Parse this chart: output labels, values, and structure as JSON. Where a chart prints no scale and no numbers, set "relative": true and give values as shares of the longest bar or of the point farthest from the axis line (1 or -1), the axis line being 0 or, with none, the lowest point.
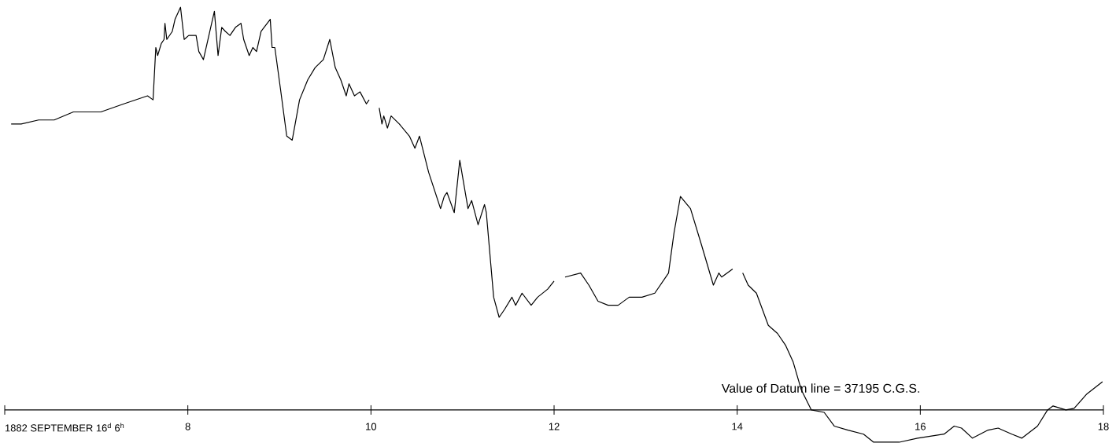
{
  "chart_data": {
    "type": "line",
    "relative": true,
    "x": [
      6.07,
      6.18,
      6.37,
      6.54,
      6.75,
      7.05,
      7.3,
      7.56,
      7.62,
      7.65,
      7.67,
      7.71,
      7.74,
      7.75,
      7.77,
      7.83,
      7.86,
      7.92,
      7.96,
      8.01,
      8.09,
      8.12,
      8.17,
      8.24,
      8.29,
      8.33,
      8.37,
      8.41,
      8.46,
      8.52,
      8.58,
      8.61,
      8.67,
      8.71,
      8.75,
      8.8,
      8.9,
      8.92,
      8.95,
      9.01,
      9.08,
      9.14,
      9.22,
      9.31,
      9.39,
      9.48,
      9.55,
      9.61,
      9.67,
      9.73,
      9.76,
      9.82,
      9.88,
      9.95,
      9.98,
      10.03,
      10.09,
      10.12,
      10.14,
      10.18,
      10.22,
      10.31,
      10.42,
      10.48,
      10.53,
      10.63,
      10.76,
      10.8,
      10.83,
      10.91,
      10.97,
      11.06,
      11.1,
      11.17,
      11.24,
      11.26,
      11.34,
      11.4,
      11.46,
      11.54,
      11.58,
      11.65,
      11.75,
      11.82,
      11.93,
      12.0,
      12.06,
      12.12,
      12.29,
      12.38,
      12.48,
      12.59,
      12.7,
      12.82,
      12.96,
      13.1,
      13.25,
      13.31,
      13.38,
      13.49,
      13.61,
      13.74,
      13.8,
      13.83,
      13.95,
      14.0,
      14.06,
      14.12,
      14.21,
      14.34,
      14.44,
      14.53,
      14.61,
      14.7,
      14.81,
      14.95,
      15.06,
      15.21,
      15.38,
      15.49,
      15.77,
      15.97,
      16.26,
      16.37,
      16.45,
      16.57,
      16.74,
      16.85,
      17.0,
      17.11,
      17.28,
      17.39,
      17.45,
      17.59,
      17.68,
      17.82,
      17.99
    ],
    "series": [
      {
        "color": "#000000",
        "values": [
          0.71,
          0.71,
          0.72,
          0.72,
          0.74,
          0.74,
          0.76,
          0.78,
          0.77,
          0.9,
          0.88,
          0.91,
          0.92,
          0.96,
          0.92,
          0.94,
          0.97,
          1.0,
          0.92,
          0.93,
          0.93,
          0.89,
          0.87,
          0.94,
          0.99,
          0.88,
          0.95,
          0.94,
          0.93,
          0.95,
          0.96,
          0.92,
          0.88,
          0.9,
          0.89,
          0.94,
          0.97,
          0.9,
          0.9,
          0.8,
          0.68,
          0.67,
          0.77,
          0.82,
          0.85,
          0.87,
          0.92,
          0.85,
          0.82,
          0.78,
          0.81,
          0.78,
          0.79,
          0.76,
          0.77,
          null,
          0.75,
          0.71,
          0.73,
          0.7,
          0.73,
          0.71,
          0.68,
          0.65,
          0.68,
          0.59,
          0.5,
          0.53,
          0.54,
          0.49,
          0.62,
          0.5,
          0.52,
          0.46,
          0.51,
          0.49,
          0.28,
          0.23,
          0.25,
          0.28,
          0.26,
          0.29,
          0.26,
          0.28,
          0.3,
          0.32,
          null,
          0.33,
          0.34,
          0.31,
          0.27,
          0.26,
          0.26,
          0.28,
          0.28,
          0.29,
          0.34,
          0.44,
          0.53,
          0.5,
          0.41,
          0.31,
          0.34,
          0.33,
          0.35,
          null,
          0.34,
          0.31,
          0.29,
          0.21,
          0.19,
          0.16,
          0.12,
          0.05,
          0,
          -0.006,
          -0.04,
          -0.05,
          -0.06,
          -0.08,
          -0.08,
          -0.07,
          -0.06,
          -0.04,
          -0.045,
          -0.07,
          -0.05,
          -0.045,
          -0.06,
          -0.07,
          -0.04,
          0,
          0.01,
          0,
          0.004,
          0.04,
          0.07
        ]
      }
    ],
    "xlim": [
      6,
      18
    ],
    "xticks": [
      {
        "value": 6,
        "label": "1882 SEPTEMBER 16$^{d}$ 6$^{h}$"
      },
      8,
      10,
      12,
      14,
      16,
      18
    ],
    "annotations": [
      "Value of Datum line = 37195 C.G.S."
    ]
  }
}
